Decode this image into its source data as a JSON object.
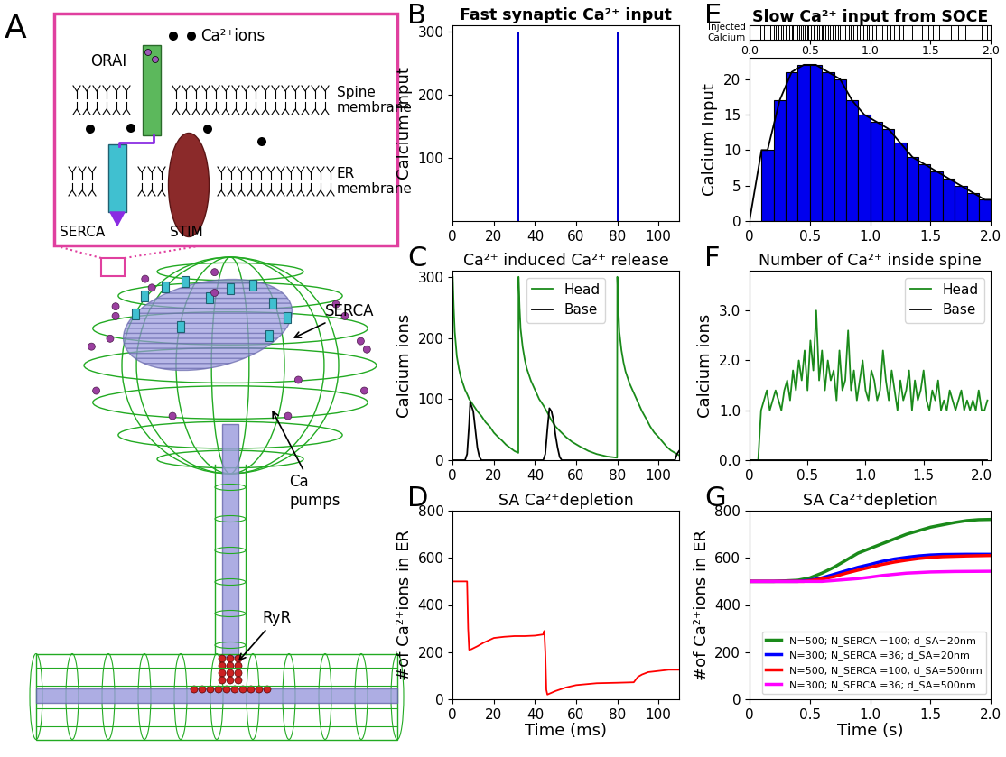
{
  "diagram": {
    "panel": "A",
    "labels": {
      "ions": "Ca²⁺ions",
      "orai": "ORAI",
      "spine_membrane": "Spine\nmembrane",
      "er_membrane": "ER\nmembrane",
      "serca_inset": "SERCA",
      "stim": "STIM",
      "serca": "SERCA",
      "ca_pumps": "Ca\npumps",
      "ryr": "RyR"
    }
  },
  "chart_data": [
    {
      "panel": "B",
      "type": "bar",
      "title": "Fast synaptic Ca²⁺ input",
      "y_label": "Calcium Input",
      "x": [
        0,
        32,
        80
      ],
      "values": [
        300,
        300,
        300
      ],
      "color": "#0000cc",
      "xlim": [
        0,
        110
      ],
      "xticks": [
        0,
        20,
        40,
        60,
        80,
        100
      ],
      "ylim": [
        0,
        310
      ],
      "yticks": [
        100,
        200,
        300
      ]
    },
    {
      "panel": "C",
      "type": "line",
      "title": "Ca²⁺ induced Ca²⁺ release",
      "y_label": "Calcium ions",
      "xlim": [
        0,
        110
      ],
      "xticks": [
        0,
        20,
        40,
        60,
        80,
        100
      ],
      "ylim": [
        0,
        310
      ],
      "yticks": [
        0,
        100,
        200,
        300
      ],
      "legend": "upper center",
      "series": [
        {
          "name": "Head",
          "color": "#1a8a1a",
          "x": [
            0,
            0.5,
            1,
            2,
            3,
            4,
            5,
            6,
            7,
            8,
            10,
            12,
            14,
            16,
            18,
            20,
            22,
            24,
            26,
            28,
            30,
            31.9,
            32,
            32.5,
            33,
            34,
            35,
            36,
            38,
            40,
            42,
            44,
            46,
            48,
            50,
            52,
            55,
            58,
            62,
            66,
            70,
            75,
            79.9,
            80,
            80.5,
            81,
            82,
            83,
            84,
            86,
            88,
            90,
            92,
            94,
            96,
            98,
            100,
            102,
            104,
            106,
            108,
            110
          ],
          "values": [
            300,
            250,
            210,
            170,
            150,
            135,
            125,
            115,
            108,
            100,
            90,
            80,
            72,
            62,
            55,
            45,
            38,
            32,
            25,
            20,
            15,
            12,
            300,
            250,
            215,
            185,
            165,
            150,
            130,
            115,
            100,
            90,
            78,
            65,
            55,
            48,
            38,
            30,
            22,
            15,
            10,
            6,
            4,
            300,
            250,
            210,
            180,
            160,
            145,
            125,
            110,
            95,
            80,
            68,
            55,
            45,
            38,
            30,
            22,
            16,
            12,
            8
          ]
        },
        {
          "name": "Base",
          "color": "black",
          "x": [
            0,
            6,
            7,
            8,
            8.5,
            9,
            10,
            11,
            12,
            13,
            14,
            44,
            45,
            46,
            47,
            48,
            49,
            50,
            51,
            52,
            53,
            108,
            109,
            110
          ],
          "values": [
            0,
            0,
            10,
            60,
            95,
            90,
            80,
            50,
            20,
            5,
            0,
            0,
            10,
            50,
            85,
            80,
            65,
            40,
            20,
            5,
            0,
            0,
            10,
            15
          ]
        }
      ]
    },
    {
      "panel": "D",
      "type": "line",
      "title": "SA Ca²⁺depletion",
      "y_label": "#of Ca²⁺ions in ER",
      "x_label": "Time (ms)",
      "xlim": [
        0,
        110
      ],
      "xticks": [
        0,
        20,
        40,
        60,
        80,
        100
      ],
      "ylim": [
        0,
        800
      ],
      "yticks": [
        0,
        200,
        400,
        600,
        800
      ],
      "series": [
        {
          "color": "red",
          "x": [
            0,
            7,
            7.5,
            8,
            9,
            12,
            15,
            20,
            25,
            30,
            35,
            40,
            44,
            44.5,
            45,
            45.5,
            46,
            50,
            55,
            60,
            70,
            80,
            88,
            90,
            92,
            95,
            100,
            105,
            110
          ],
          "values": [
            500,
            500,
            300,
            210,
            212,
            225,
            240,
            260,
            265,
            268,
            268,
            270,
            275,
            290,
            200,
            40,
            20,
            35,
            50,
            60,
            68,
            70,
            72,
            95,
            105,
            115,
            120,
            125,
            125
          ]
        }
      ]
    },
    {
      "panel": "E",
      "type": "histogram",
      "title": "Slow Ca²⁺ input from SOCE",
      "y_label": "Calcium Input",
      "bins": [
        0,
        0.1,
        0.2,
        0.3,
        0.4,
        0.5,
        0.6,
        0.7,
        0.8,
        0.9,
        1.0,
        1.1,
        1.2,
        1.3,
        1.4,
        1.5,
        1.6,
        1.7,
        1.8,
        1.9,
        2.0
      ],
      "counts": [
        0,
        10,
        17,
        21,
        22,
        22,
        21,
        20,
        17,
        15,
        14,
        13,
        11,
        9,
        8,
        7,
        6,
        5,
        4,
        3
      ],
      "color": "#0000ee",
      "xlim": [
        0,
        2
      ],
      "xticks": [
        0,
        0.5,
        {
          "value": 1,
          "label": "1.0"
        },
        1.5,
        {
          "value": 2,
          "label": "2.0"
        }
      ],
      "ylim": [
        0,
        23
      ],
      "yticks": [
        0,
        5,
        10,
        15,
        20
      ],
      "series": [
        {
          "type": "line",
          "color": "black",
          "x": [
            0,
            0.1,
            0.15,
            0.25,
            0.35,
            0.45,
            0.55,
            0.65,
            0.75,
            0.85,
            0.95,
            1.05,
            1.15,
            1.25,
            1.35,
            1.45,
            1.55,
            1.65,
            1.75,
            1.85,
            1.95,
            2.0
          ],
          "values": [
            0,
            10,
            10,
            17,
            21,
            22,
            22,
            21,
            20,
            17,
            15,
            14,
            13,
            11,
            9,
            8,
            7,
            6,
            5,
            4,
            3,
            3
          ]
        }
      ],
      "events": {
        "label": "Injected\nCalcium",
        "xlim": [
          0,
          2
        ],
        "xticks": [
          {
            "value": 0,
            "label": "0.0"
          },
          0.5,
          {
            "value": 1,
            "label": "1.0"
          },
          1.5,
          {
            "value": 2,
            "label": "2.0"
          }
        ],
        "times": [
          0.09,
          0.12,
          0.15,
          0.17,
          0.2,
          0.22,
          0.24,
          0.26,
          0.28,
          0.3,
          0.31,
          0.33,
          0.35,
          0.36,
          0.38,
          0.4,
          0.41,
          0.43,
          0.44,
          0.46,
          0.48,
          0.49,
          0.51,
          0.53,
          0.54,
          0.56,
          0.58,
          0.6,
          0.61,
          0.63,
          0.65,
          0.67,
          0.69,
          0.71,
          0.73,
          0.75,
          0.77,
          0.79,
          0.82,
          0.84,
          0.86,
          0.89,
          0.91,
          0.94,
          0.97,
          0.99,
          1.02,
          1.05,
          1.08,
          1.1,
          1.14,
          1.17,
          1.2,
          1.24,
          1.27,
          1.31,
          1.35,
          1.39,
          1.43,
          1.48,
          1.52,
          1.57,
          1.62,
          1.67,
          1.73,
          1.79,
          1.85,
          1.92,
          1.97
        ]
      }
    },
    {
      "panel": "F",
      "type": "line",
      "title": "Number of Ca²⁺ inside spine",
      "y_label": "Calcium ions",
      "xlim": [
        0,
        2.08
      ],
      "xticks": [
        0,
        0.5,
        {
          "value": 1,
          "label": "1.0"
        },
        1.5,
        {
          "value": 2,
          "label": "2.0"
        }
      ],
      "ylim": [
        0,
        3.8
      ],
      "yticks": [
        {
          "value": 0,
          "label": "0.0"
        },
        {
          "value": 1,
          "label": "1.0"
        },
        {
          "value": 2,
          "label": "2.0"
        },
        {
          "value": 3,
          "label": "3.0"
        }
      ],
      "legend": "upper right",
      "series": [
        {
          "name": "Head",
          "color": "#1a8a1a",
          "x": [
            0,
            0.025,
            0.05,
            0.075,
            0.1,
            0.125,
            0.15,
            0.175,
            0.2,
            0.225,
            0.25,
            0.275,
            0.3,
            0.325,
            0.35,
            0.375,
            0.4,
            0.425,
            0.45,
            0.475,
            0.5,
            0.525,
            0.55,
            0.575,
            0.6,
            0.625,
            0.65,
            0.675,
            0.7,
            0.725,
            0.75,
            0.775,
            0.8,
            0.825,
            0.85,
            0.875,
            0.9,
            0.925,
            0.95,
            0.975,
            1.0,
            1.025,
            1.05,
            1.075,
            1.1,
            1.125,
            1.15,
            1.175,
            1.2,
            1.225,
            1.25,
            1.275,
            1.3,
            1.325,
            1.35,
            1.375,
            1.4,
            1.425,
            1.45,
            1.475,
            1.5,
            1.525,
            1.55,
            1.575,
            1.6,
            1.625,
            1.65,
            1.675,
            1.7,
            1.725,
            1.75,
            1.775,
            1.8,
            1.825,
            1.85,
            1.875,
            1.9,
            1.925,
            1.95,
            1.975,
            2.0,
            2.025,
            2.05
          ],
          "values": [
            0,
            0,
            0,
            0,
            1.0,
            1.2,
            1.4,
            1.0,
            1.2,
            1.4,
            1.2,
            1.0,
            1.4,
            1.6,
            1.2,
            1.8,
            1.4,
            2.0,
            1.6,
            2.2,
            1.4,
            2.4,
            1.8,
            3.0,
            1.6,
            2.2,
            1.4,
            2.0,
            1.6,
            1.8,
            1.2,
            2.2,
            1.4,
            1.6,
            2.6,
            1.4,
            1.8,
            1.2,
            1.6,
            2.0,
            1.4,
            1.2,
            1.8,
            1.6,
            1.2,
            1.4,
            2.2,
            1.6,
            1.2,
            1.8,
            1.4,
            1.0,
            1.6,
            1.2,
            1.4,
            1.8,
            1.0,
            1.6,
            1.2,
            1.4,
            1.8,
            1.2,
            1.0,
            1.4,
            1.2,
            1.6,
            1.0,
            1.2,
            1.0,
            1.4,
            1.2,
            1.0,
            1.2,
            1.4,
            1.0,
            1.2,
            1.0,
            1.2,
            1.0,
            1.4,
            1.0,
            1.0,
            1.2
          ]
        },
        {
          "name": "Base",
          "color": "black",
          "x": [
            0,
            2.05
          ],
          "values": [
            0,
            0
          ]
        }
      ]
    },
    {
      "panel": "G",
      "type": "line",
      "title": "SA Ca²⁺depletion",
      "y_label": "#of Ca²⁺ions in ER",
      "x_label": "Time (s)",
      "xlim": [
        0,
        2
      ],
      "xticks": [
        0,
        0.5,
        {
          "value": 1,
          "label": "1.0"
        },
        1.5,
        {
          "value": 2,
          "label": "2.0"
        }
      ],
      "ylim": [
        0,
        800
      ],
      "yticks": [
        0,
        200,
        400,
        600,
        800
      ],
      "legend": "lower right",
      "series": [
        {
          "name": "N=500; N_SERCA =100; d_SA=20nm",
          "color": "#1a8a1a",
          "x": [
            0,
            0.2,
            0.4,
            0.5,
            0.6,
            0.7,
            0.8,
            0.9,
            1.0,
            1.1,
            1.2,
            1.3,
            1.4,
            1.5,
            1.6,
            1.7,
            1.8,
            1.9,
            2.0
          ],
          "values": [
            500,
            500,
            505,
            515,
            535,
            560,
            590,
            620,
            640,
            660,
            680,
            700,
            715,
            730,
            740,
            750,
            758,
            762,
            763
          ]
        },
        {
          "name": "N=300; N_SERCA =36; d_SA=20nm",
          "color": "blue",
          "x": [
            0,
            0.4,
            0.5,
            0.6,
            0.7,
            0.8,
            0.9,
            1.0,
            1.1,
            1.2,
            1.3,
            1.4,
            1.5,
            1.6,
            1.8,
            2.0
          ],
          "values": [
            500,
            500,
            505,
            515,
            530,
            545,
            560,
            572,
            585,
            595,
            602,
            608,
            612,
            614,
            615,
            615
          ]
        },
        {
          "name": "N=500; N_SERCA =100; d_SA=500nm",
          "color": "red",
          "x": [
            0,
            0.45,
            0.6,
            0.7,
            0.8,
            0.9,
            1.0,
            1.1,
            1.2,
            1.3,
            1.4,
            1.5,
            1.6,
            1.8,
            2.0
          ],
          "values": [
            500,
            500,
            510,
            520,
            535,
            548,
            560,
            572,
            582,
            590,
            597,
            602,
            605,
            608,
            610
          ]
        },
        {
          "name": "N=300; N_SERCA =36; d_SA=500nm",
          "color": "magenta",
          "x": [
            0,
            0.6,
            0.8,
            0.9,
            1.0,
            1.1,
            1.2,
            1.3,
            1.5,
            1.7,
            2.0
          ],
          "values": [
            500,
            500,
            508,
            512,
            518,
            525,
            530,
            535,
            540,
            542,
            543
          ]
        }
      ]
    }
  ]
}
